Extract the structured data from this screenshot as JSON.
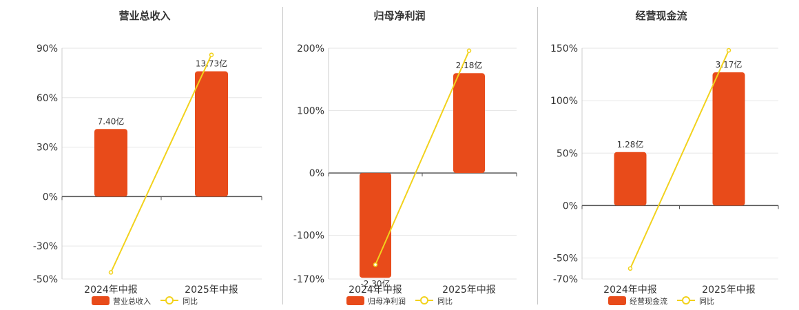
{
  "chart_data": [
    {
      "type": "bar",
      "title": "营业总收入",
      "categories": [
        "2024年中报",
        "2025年中报"
      ],
      "series": [
        {
          "name": "营业总收入",
          "type": "bar",
          "values": [
            41,
            76
          ],
          "labels": [
            "7.40亿",
            "13.73亿"
          ]
        },
        {
          "name": "同比",
          "type": "line",
          "values": [
            -46,
            86
          ]
        }
      ],
      "y_ticks": [
        90,
        60,
        30,
        0,
        -30,
        -50
      ],
      "y_tick_labels": [
        "90%",
        "60%",
        "30%",
        "0%",
        "-30%",
        "-50%"
      ],
      "ylim": [
        -50,
        90
      ],
      "grid": true,
      "legend": "bottom-center"
    },
    {
      "type": "bar",
      "title": "归母净利润",
      "categories": [
        "2024年中报",
        "2025年中报"
      ],
      "series": [
        {
          "name": "归母净利润",
          "type": "bar",
          "values": [
            -168,
            160
          ],
          "labels": [
            "-2.30亿",
            "2.18亿"
          ]
        },
        {
          "name": "同比",
          "type": "line",
          "values": [
            -147,
            196
          ]
        }
      ],
      "y_ticks": [
        200,
        100,
        0,
        -100,
        -170
      ],
      "y_tick_labels": [
        "200%",
        "100%",
        "0%",
        "-100%",
        "-170%"
      ],
      "ylim": [
        -170,
        200
      ],
      "grid": true,
      "legend": "bottom-center"
    },
    {
      "type": "bar",
      "title": "经营现金流",
      "categories": [
        "2024年中报",
        "2025年中报"
      ],
      "series": [
        {
          "name": "经营现金流",
          "type": "bar",
          "values": [
            51,
            127
          ],
          "labels": [
            "1.28亿",
            "3.17亿"
          ]
        },
        {
          "name": "同比",
          "type": "line",
          "values": [
            -60,
            148
          ]
        }
      ],
      "y_ticks": [
        150,
        100,
        50,
        0,
        -50,
        -70
      ],
      "y_tick_labels": [
        "150%",
        "100%",
        "50%",
        "0%",
        "-50%",
        "-70%"
      ],
      "ylim": [
        -70,
        150
      ],
      "grid": true,
      "legend": "bottom-center"
    }
  ],
  "colors": {
    "bar": "#e84b1a",
    "line": "#f2d21c",
    "grid": "#e6e6e6",
    "axis": "#555555",
    "text": "#333333",
    "title": "#333333"
  }
}
